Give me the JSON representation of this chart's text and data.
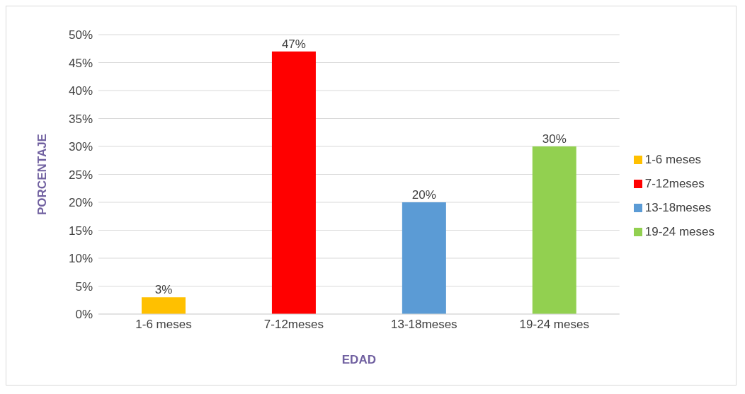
{
  "chart_data": {
    "type": "bar",
    "xlabel": "EDAD",
    "ylabel": "PORCENTAJE",
    "categories": [
      "1-6 meses",
      "7-12meses",
      "13-18meses",
      "19-24 meses"
    ],
    "series": [
      {
        "name": "1-6 meses",
        "color": "#ffc000",
        "values": [
          3,
          null,
          null,
          null
        ],
        "value_labels": [
          "3%",
          null,
          null,
          null
        ]
      },
      {
        "name": "7-12meses",
        "color": "#ff0000",
        "values": [
          null,
          47,
          null,
          null
        ],
        "value_labels": [
          null,
          "47%",
          null,
          null
        ]
      },
      {
        "name": "13-18meses",
        "color": "#5b9bd5",
        "values": [
          null,
          null,
          20,
          null
        ],
        "value_labels": [
          null,
          null,
          "20%",
          null
        ]
      },
      {
        "name": "19-24 meses",
        "color": "#92d050",
        "values": [
          null,
          null,
          null,
          30
        ],
        "value_labels": [
          null,
          null,
          null,
          "30%"
        ]
      }
    ],
    "stacked": true,
    "ylim": [
      0,
      50
    ],
    "yticks": [
      {
        "value": 0,
        "label": "0%"
      },
      {
        "value": 5,
        "label": "5%"
      },
      {
        "value": 10,
        "label": "10%"
      },
      {
        "value": 15,
        "label": "15%"
      },
      {
        "value": 20,
        "label": "20%"
      },
      {
        "value": 25,
        "label": "25%"
      },
      {
        "value": 30,
        "label": "30%"
      },
      {
        "value": 35,
        "label": "35%"
      },
      {
        "value": 40,
        "label": "40%"
      },
      {
        "value": 45,
        "label": "45%"
      },
      {
        "value": 50,
        "label": "50%"
      }
    ],
    "grid": "y",
    "legend": "right"
  }
}
